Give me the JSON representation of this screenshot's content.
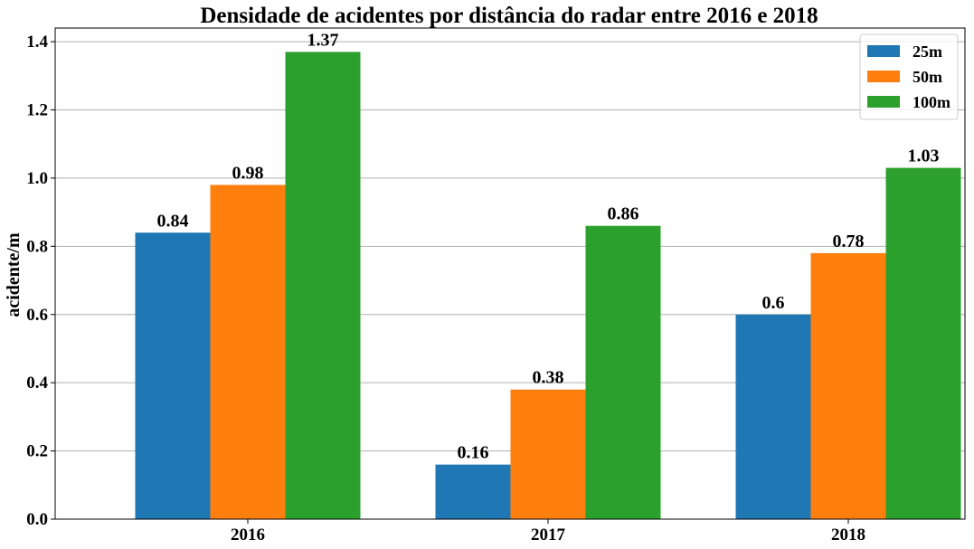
{
  "chart_data": {
    "type": "bar",
    "title": "Densidade de acidentes por distância do radar entre 2016 e 2018",
    "xlabel": "",
    "ylabel": "acidente/m",
    "categories": [
      "2016",
      "2017",
      "2018"
    ],
    "series": [
      {
        "name": "25m",
        "values": [
          0.84,
          0.16,
          0.6
        ],
        "labels": [
          "0.84",
          "0.16",
          "0.6"
        ],
        "color": "#1f77b4"
      },
      {
        "name": "50m",
        "values": [
          0.98,
          0.38,
          0.78
        ],
        "labels": [
          "0.98",
          "0.38",
          "0.78"
        ],
        "color": "#ff7f0e"
      },
      {
        "name": "100m",
        "values": [
          1.37,
          0.86,
          1.03
        ],
        "labels": [
          "1.37",
          "0.86",
          "1.03"
        ],
        "color": "#2ca02c"
      }
    ],
    "ylim": [
      0,
      1.44
    ],
    "yticks": [
      0.0,
      0.2,
      0.4,
      0.6,
      0.8,
      1.0,
      1.2,
      1.4
    ],
    "ytick_labels": [
      "0.0",
      "0.2",
      "0.4",
      "0.6",
      "0.8",
      "1.0",
      "1.2",
      "1.4"
    ],
    "grid": "y",
    "legend_position": "top-right"
  }
}
